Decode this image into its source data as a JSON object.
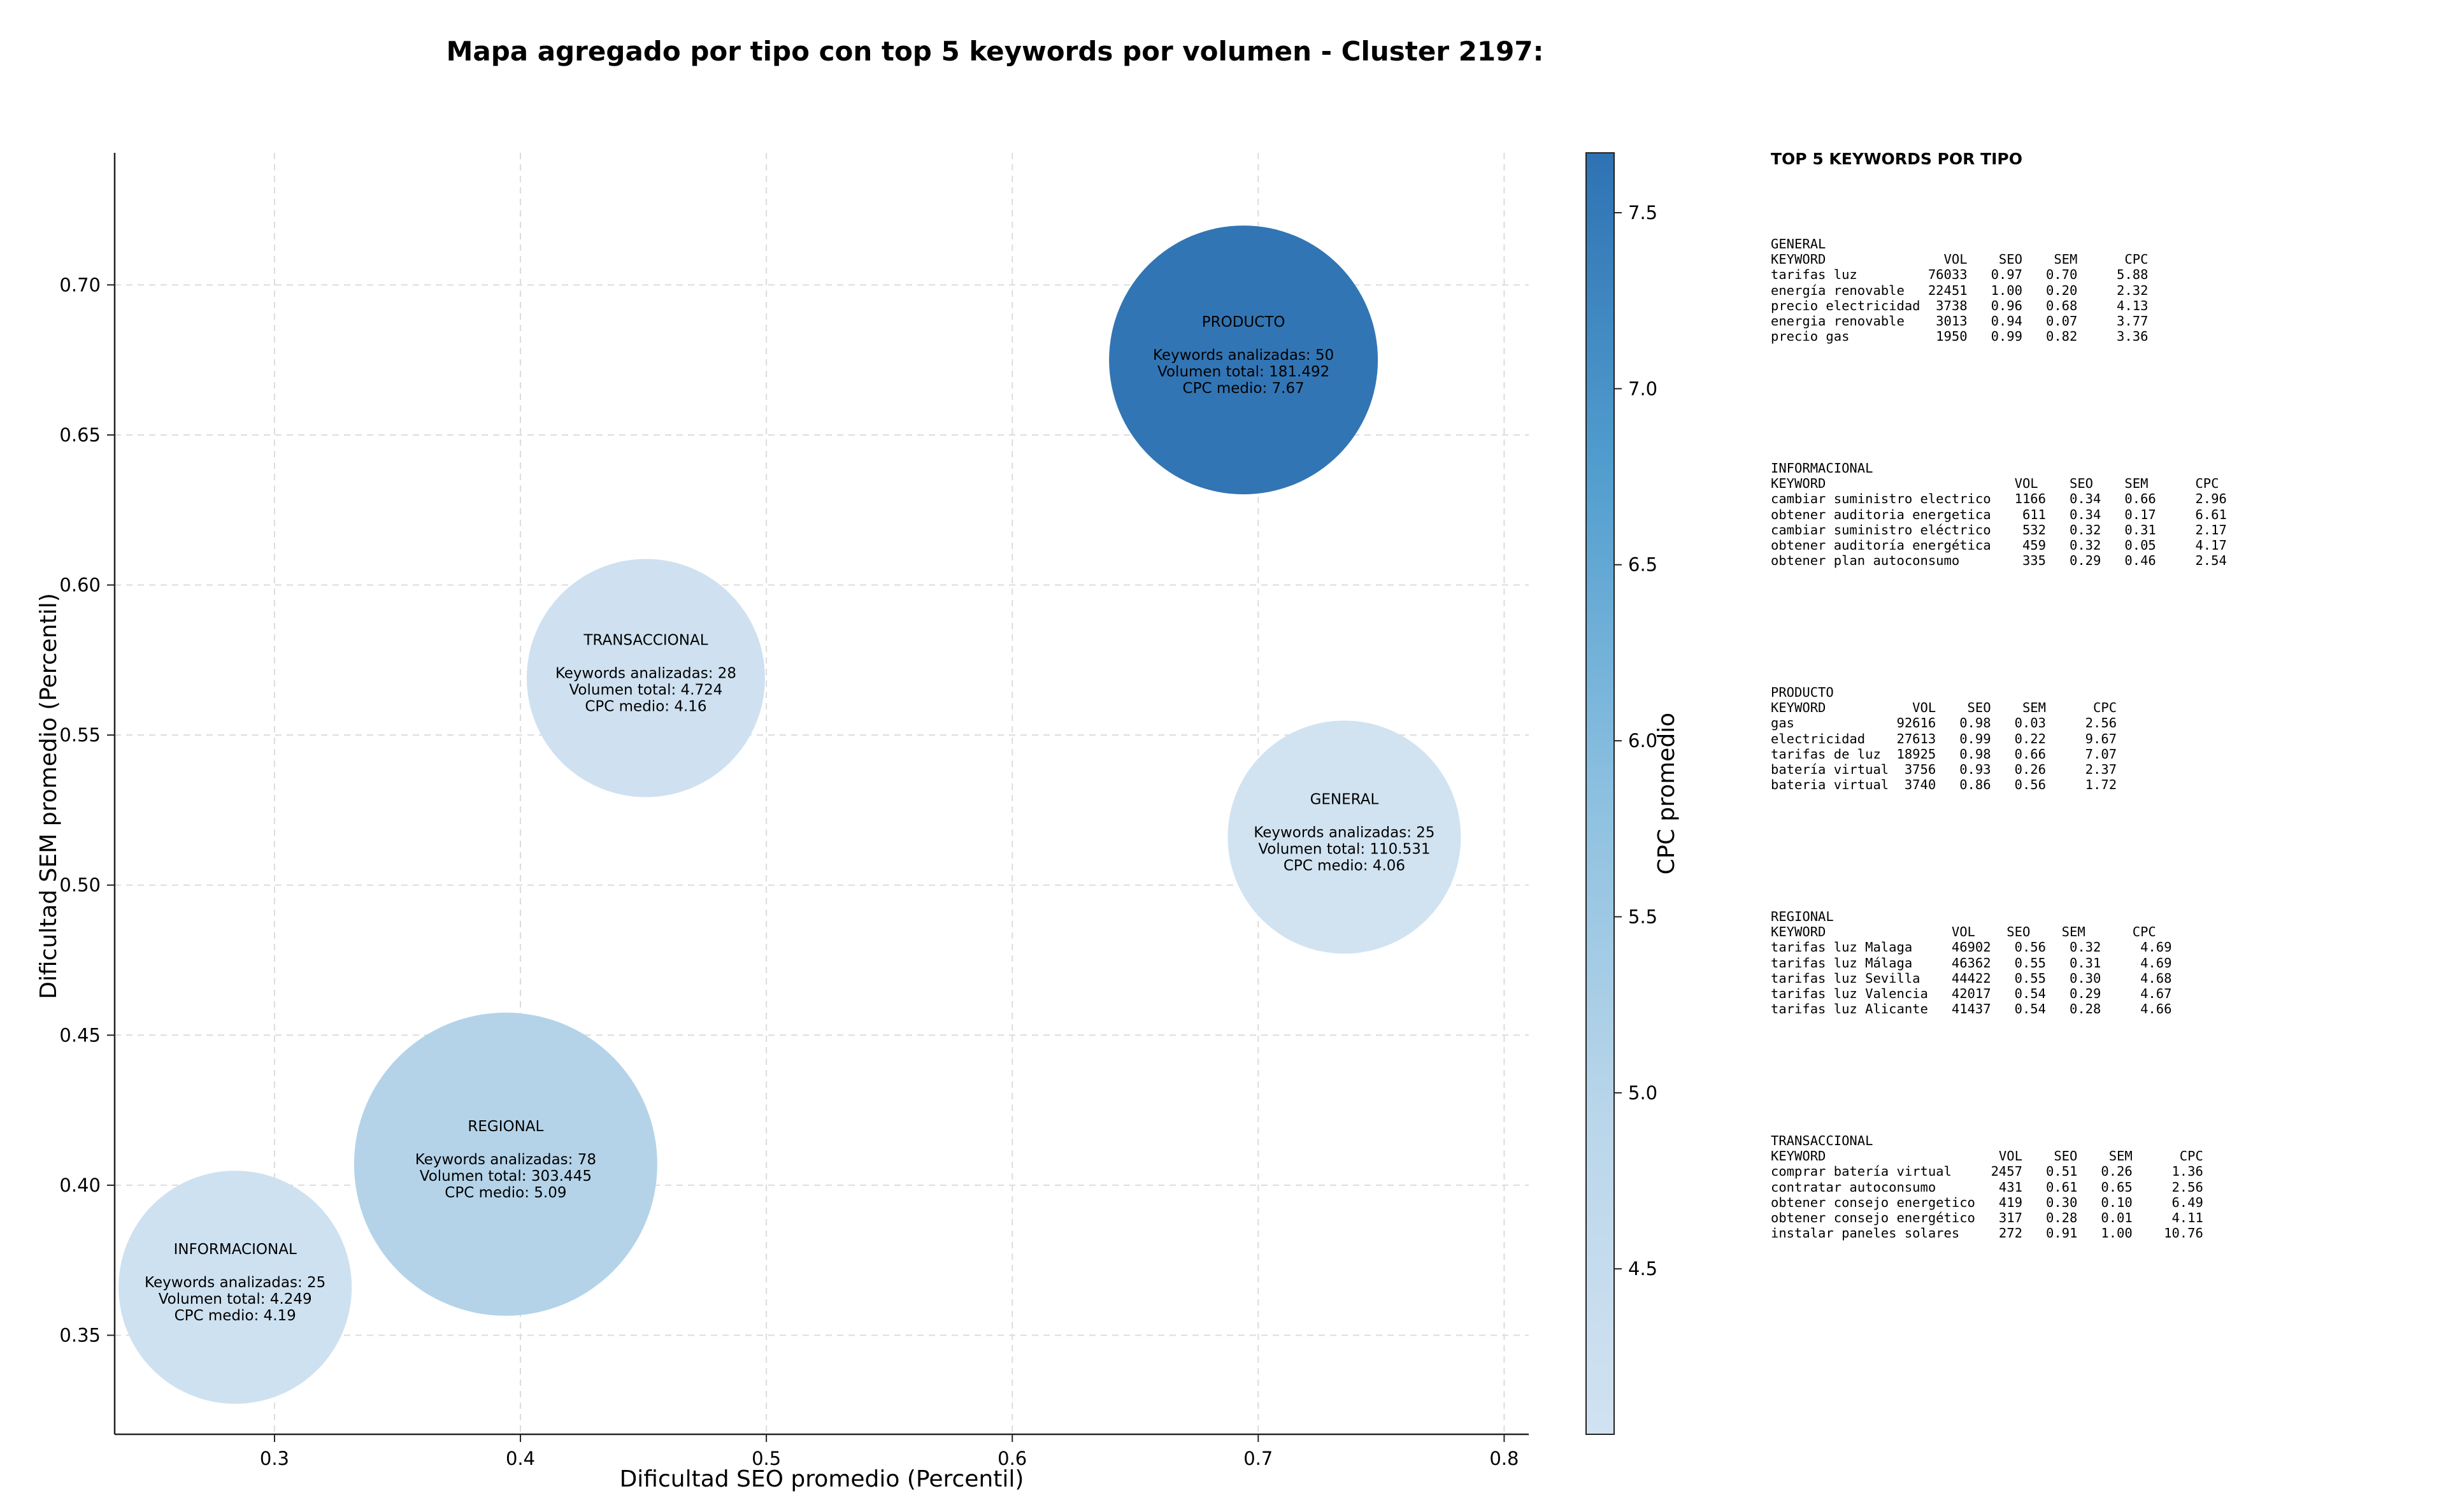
{
  "chart_data": {
    "type": "scatter",
    "title": "Mapa agregado por tipo con top 5 keywords por volumen - Cluster 2197:",
    "xlabel": "Dificultad SEO promedio (Percentil)",
    "ylabel": "Dificultad SEM promedio (Percentil)",
    "xlim": [
      0.235,
      0.81
    ],
    "ylim": [
      0.317,
      0.744
    ],
    "xticks": [
      0.3,
      0.4,
      0.5,
      0.6,
      0.7,
      0.8
    ],
    "yticks": [
      0.35,
      0.4,
      0.45,
      0.5,
      0.55,
      0.6,
      0.65,
      0.7
    ],
    "grid": true,
    "colorbar": {
      "label": "CPC promedio",
      "min": 4.03,
      "max": 7.67,
      "ticks": [
        4.5,
        5.0,
        5.5,
        6.0,
        6.5,
        7.0,
        7.5
      ]
    },
    "points": [
      {
        "name": "PRODUCTO",
        "x": 0.694,
        "y": 0.675,
        "keywords": 50,
        "volume": 181492,
        "cpc": 7.67,
        "label_lines": [
          "Keywords analizadas: 50",
          "Volumen total: 181.492",
          "CPC medio: 7.67"
        ]
      },
      {
        "name": "TRANSACCIONAL",
        "x": 0.451,
        "y": 0.569,
        "keywords": 28,
        "volume": 4724,
        "cpc": 4.16,
        "label_lines": [
          "Keywords analizadas: 28",
          "Volumen total: 4.724",
          "CPC medio: 4.16"
        ]
      },
      {
        "name": "GENERAL",
        "x": 0.735,
        "y": 0.516,
        "keywords": 25,
        "volume": 110531,
        "cpc": 4.06,
        "label_lines": [
          "Keywords analizadas: 25",
          "Volumen total: 110.531",
          "CPC medio: 4.06"
        ]
      },
      {
        "name": "REGIONAL",
        "x": 0.394,
        "y": 0.407,
        "keywords": 78,
        "volume": 303445,
        "cpc": 5.09,
        "label_lines": [
          "Keywords analizadas: 78",
          "Volumen total: 303.445",
          "CPC medio: 5.09"
        ]
      },
      {
        "name": "INFORMACIONAL",
        "x": 0.284,
        "y": 0.366,
        "keywords": 25,
        "volume": 4249,
        "cpc": 4.19,
        "label_lines": [
          "Keywords analizadas: 25",
          "Volumen total: 4.249",
          "CPC medio: 4.19"
        ]
      }
    ]
  },
  "keyword_panel": {
    "title": "TOP 5 KEYWORDS POR TIPO",
    "blocks": [
      {
        "lines": [
          "GENERAL",
          "KEYWORD               VOL    SEO    SEM      CPC",
          "tarifas luz         76033   0.97   0.70     5.88",
          "energía renovable   22451   1.00   0.20     2.32",
          "precio electricidad  3738   0.96   0.68     4.13",
          "energia renovable    3013   0.94   0.07     3.77",
          "precio gas           1950   0.99   0.82     3.36"
        ]
      },
      {
        "lines": [
          "INFORMACIONAL",
          "KEYWORD                        VOL    SEO    SEM      CPC",
          "cambiar suministro electrico   1166   0.34   0.66     2.96",
          "obtener auditoria energetica    611   0.34   0.17     6.61",
          "cambiar suministro eléctrico    532   0.32   0.31     2.17",
          "obtener auditoría energética    459   0.32   0.05     4.17",
          "obtener plan autoconsumo        335   0.29   0.46     2.54"
        ]
      },
      {
        "lines": [
          "PRODUCTO",
          "KEYWORD           VOL    SEO    SEM      CPC",
          "gas             92616   0.98   0.03     2.56",
          "electricidad    27613   0.99   0.22     9.67",
          "tarifas de luz  18925   0.98   0.66     7.07",
          "batería virtual  3756   0.93   0.26     2.37",
          "bateria virtual  3740   0.86   0.56     1.72"
        ]
      },
      {
        "lines": [
          "REGIONAL",
          "KEYWORD                VOL    SEO    SEM      CPC",
          "tarifas luz Malaga     46902   0.56   0.32     4.69",
          "tarifas luz Málaga     46362   0.55   0.31     4.69",
          "tarifas luz Sevilla    44422   0.55   0.30     4.68",
          "tarifas luz Valencia   42017   0.54   0.29     4.67",
          "tarifas luz Alicante   41437   0.54   0.28     4.66"
        ]
      },
      {
        "lines": [
          "TRANSACCIONAL",
          "KEYWORD                      VOL    SEO    SEM      CPC",
          "comprar batería virtual     2457   0.51   0.26     1.36",
          "contratar autoconsumo        431   0.61   0.65     2.56",
          "obtener consejo energetico   419   0.30   0.10     6.49",
          "obtener consejo energético   317   0.28   0.01     4.11",
          "instalar paneles solares     272   0.91   1.00    10.76"
        ]
      }
    ]
  }
}
